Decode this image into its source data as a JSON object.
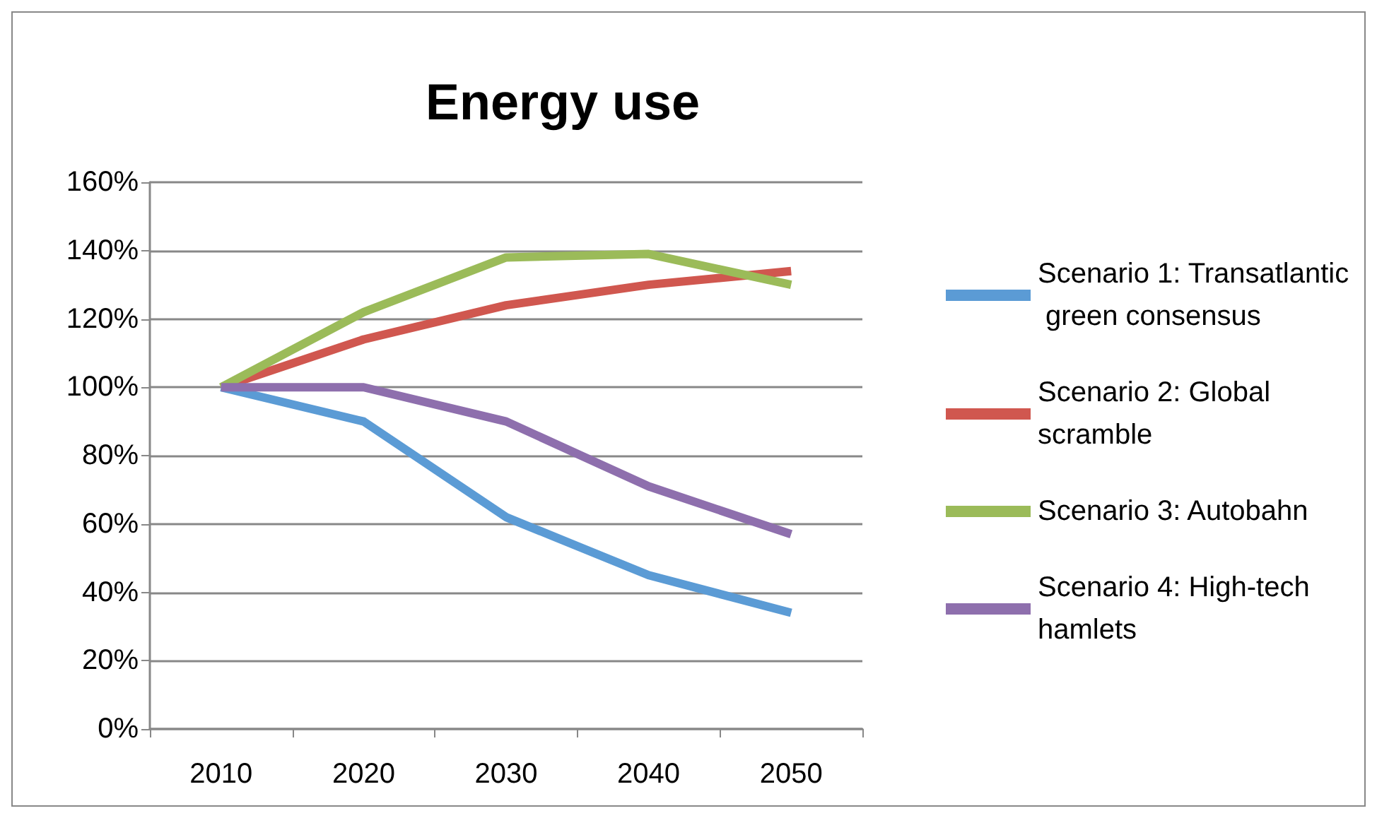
{
  "chart_data": {
    "type": "line",
    "title": "Energy use",
    "categories": [
      "2010",
      "2020",
      "2030",
      "2040",
      "2050"
    ],
    "series": [
      {
        "name": "Scenario 1: Transatlantic green consensus",
        "color": "#5b9bd5",
        "values": [
          100,
          90,
          62,
          45,
          34
        ]
      },
      {
        "name": "Scenario 2: Global scramble",
        "color": "#d0574f",
        "values": [
          100,
          114,
          124,
          130,
          134
        ]
      },
      {
        "name": "Scenario 3: Autobahn",
        "color": "#9bbb59",
        "values": [
          100,
          122,
          138,
          139,
          130
        ]
      },
      {
        "name": "Scenario 4: High-tech hamlets",
        "color": "#8e6fad",
        "values": [
          100,
          100,
          90,
          71,
          57
        ]
      }
    ],
    "ylim": [
      0,
      160
    ],
    "yticks": [
      {
        "value": 0,
        "label": "0%"
      },
      {
        "value": 20,
        "label": "20%"
      },
      {
        "value": 40,
        "label": "40%"
      },
      {
        "value": 60,
        "label": "60%"
      },
      {
        "value": 80,
        "label": "80%"
      },
      {
        "value": 100,
        "label": "100%"
      },
      {
        "value": 120,
        "label": "120%"
      },
      {
        "value": 140,
        "label": "140%"
      },
      {
        "value": 160,
        "label": "160%"
      }
    ],
    "grid": "y",
    "legend": "right",
    "marker": "none",
    "line_style": "solid"
  }
}
